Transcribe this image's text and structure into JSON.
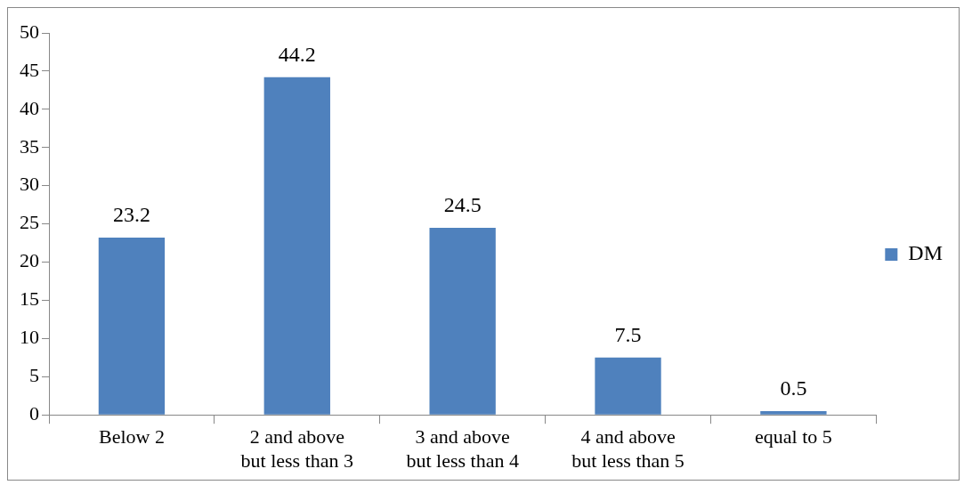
{
  "chart_data": {
    "type": "bar",
    "categories": [
      "Below 2",
      "2 and above\nbut less than 3",
      "3 and above\nbut less than 4",
      "4 and above\nbut less than 5",
      "equal to 5"
    ],
    "series": [
      {
        "name": "DM",
        "color": "#4f81bd",
        "values": [
          23.2,
          44.2,
          24.5,
          7.5,
          0.5
        ]
      }
    ],
    "ylim": [
      0,
      50
    ],
    "yticks": [
      0,
      5,
      10,
      15,
      20,
      25,
      30,
      35,
      40,
      45,
      50
    ],
    "grid": false,
    "legend": "right",
    "data_labels": true
  }
}
